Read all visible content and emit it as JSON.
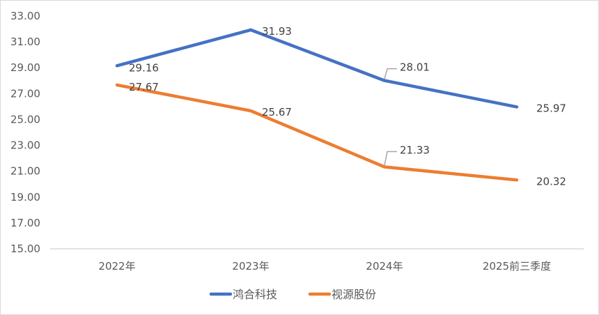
{
  "chart_data": {
    "type": "line",
    "title": "",
    "xlabel": "",
    "ylabel": "",
    "categories": [
      "2022年",
      "2023年",
      "2024年",
      "2025前三季度"
    ],
    "series": [
      {
        "name": "鸿合科技",
        "color": "#4472C4",
        "values": [
          29.16,
          31.93,
          28.01,
          25.97
        ],
        "labels": [
          "29.16",
          "31.93",
          "28.01",
          "25.97"
        ]
      },
      {
        "name": "视源股份",
        "color": "#ED7D31",
        "values": [
          27.67,
          25.67,
          21.33,
          20.32
        ],
        "labels": [
          "27.67",
          "25.67",
          "21.33",
          "20.32"
        ]
      }
    ],
    "ylim": [
      15,
      33
    ],
    "yticks": [
      "15.00",
      "17.00",
      "19.00",
      "21.00",
      "23.00",
      "25.00",
      "27.00",
      "29.00",
      "31.00",
      "33.00"
    ],
    "grid": false,
    "legend_position": "bottom"
  }
}
